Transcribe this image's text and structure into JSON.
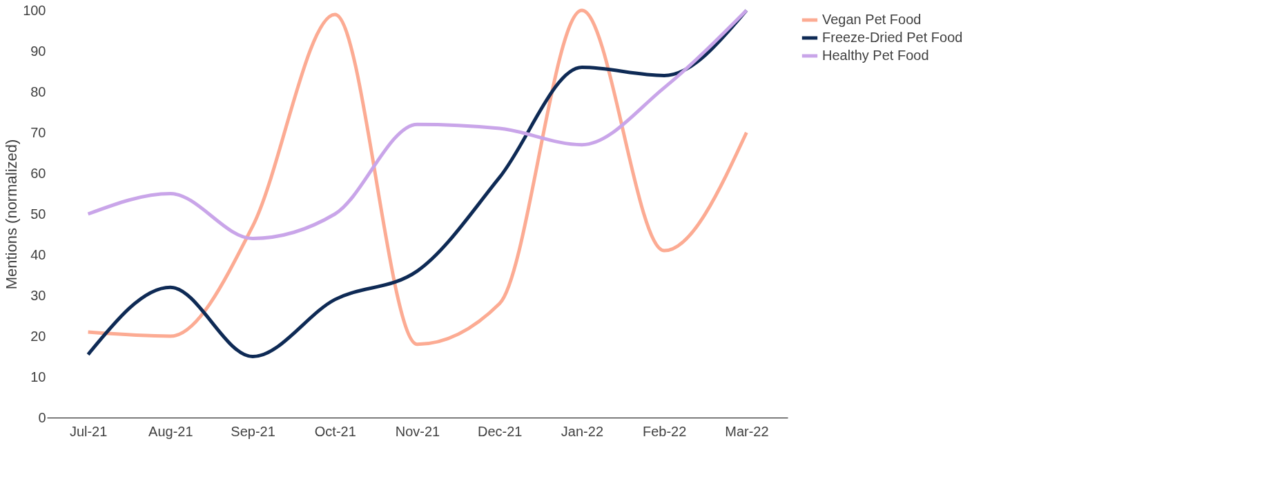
{
  "chart_data": {
    "type": "line",
    "ylabel": "Mentions (normalized)",
    "categories": [
      "Jul-21",
      "Aug-21",
      "Sep-21",
      "Oct-21",
      "Nov-21",
      "Dec-21",
      "Jan-22",
      "Feb-22",
      "Mar-22"
    ],
    "series": [
      {
        "name": "Vegan Pet Food",
        "color": "#fcab93",
        "values": [
          21,
          20,
          47,
          99,
          18,
          28,
          100,
          41,
          70
        ]
      },
      {
        "name": "Freeze-Dried Pet Food",
        "color": "#0e2a55",
        "values": [
          15.5,
          32,
          15,
          29,
          36,
          59,
          86,
          84,
          100
        ]
      },
      {
        "name": "Healthy Pet Food",
        "color": "#c9a5e9",
        "values": [
          50,
          55,
          44,
          50,
          72,
          71,
          67,
          81,
          100
        ]
      }
    ],
    "ylim": [
      0,
      100
    ],
    "yticks": [
      0,
      10,
      20,
      30,
      40,
      50,
      60,
      70,
      80,
      90,
      100
    ],
    "grid": false,
    "legend": "right",
    "marker": "none",
    "line_style": "solid"
  }
}
